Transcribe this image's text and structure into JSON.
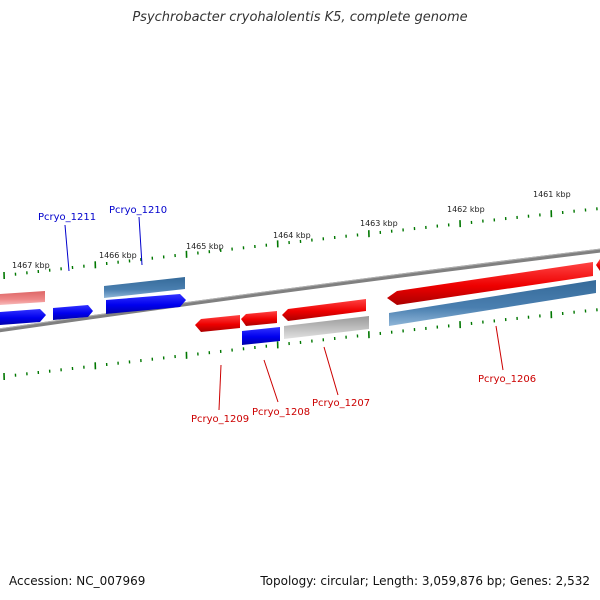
{
  "title": "Psychrobacter cryohalolentis K5, complete genome",
  "accession": "Accession: NC_007969",
  "summary": "Topology: circular; Length: 3,059,876 bp; Genes: 2,532",
  "ticks": [
    "1461 kbp",
    "1462 kbp",
    "1463 kbp",
    "1464 kbp",
    "1465 kbp",
    "1466 kbp",
    "1467 kbp"
  ],
  "gene_labels": [
    "Pcryo_1211",
    "Pcryo_1210",
    "Pcryo_1209",
    "Pcryo_1208",
    "Pcryo_1207",
    "Pcryo_1206"
  ],
  "colors": {
    "forward_strand_gene": "#0000ee",
    "reverse_strand_gene": "#ee0000",
    "forward_label": "#0000cc",
    "reverse_label": "#cc0000",
    "cds_feature": "#4a7fb0",
    "pseudo_feature": "#bbbbbb",
    "faded_gene": "#ee8888",
    "backbone": "#808080",
    "tick_mark": "#007700"
  }
}
